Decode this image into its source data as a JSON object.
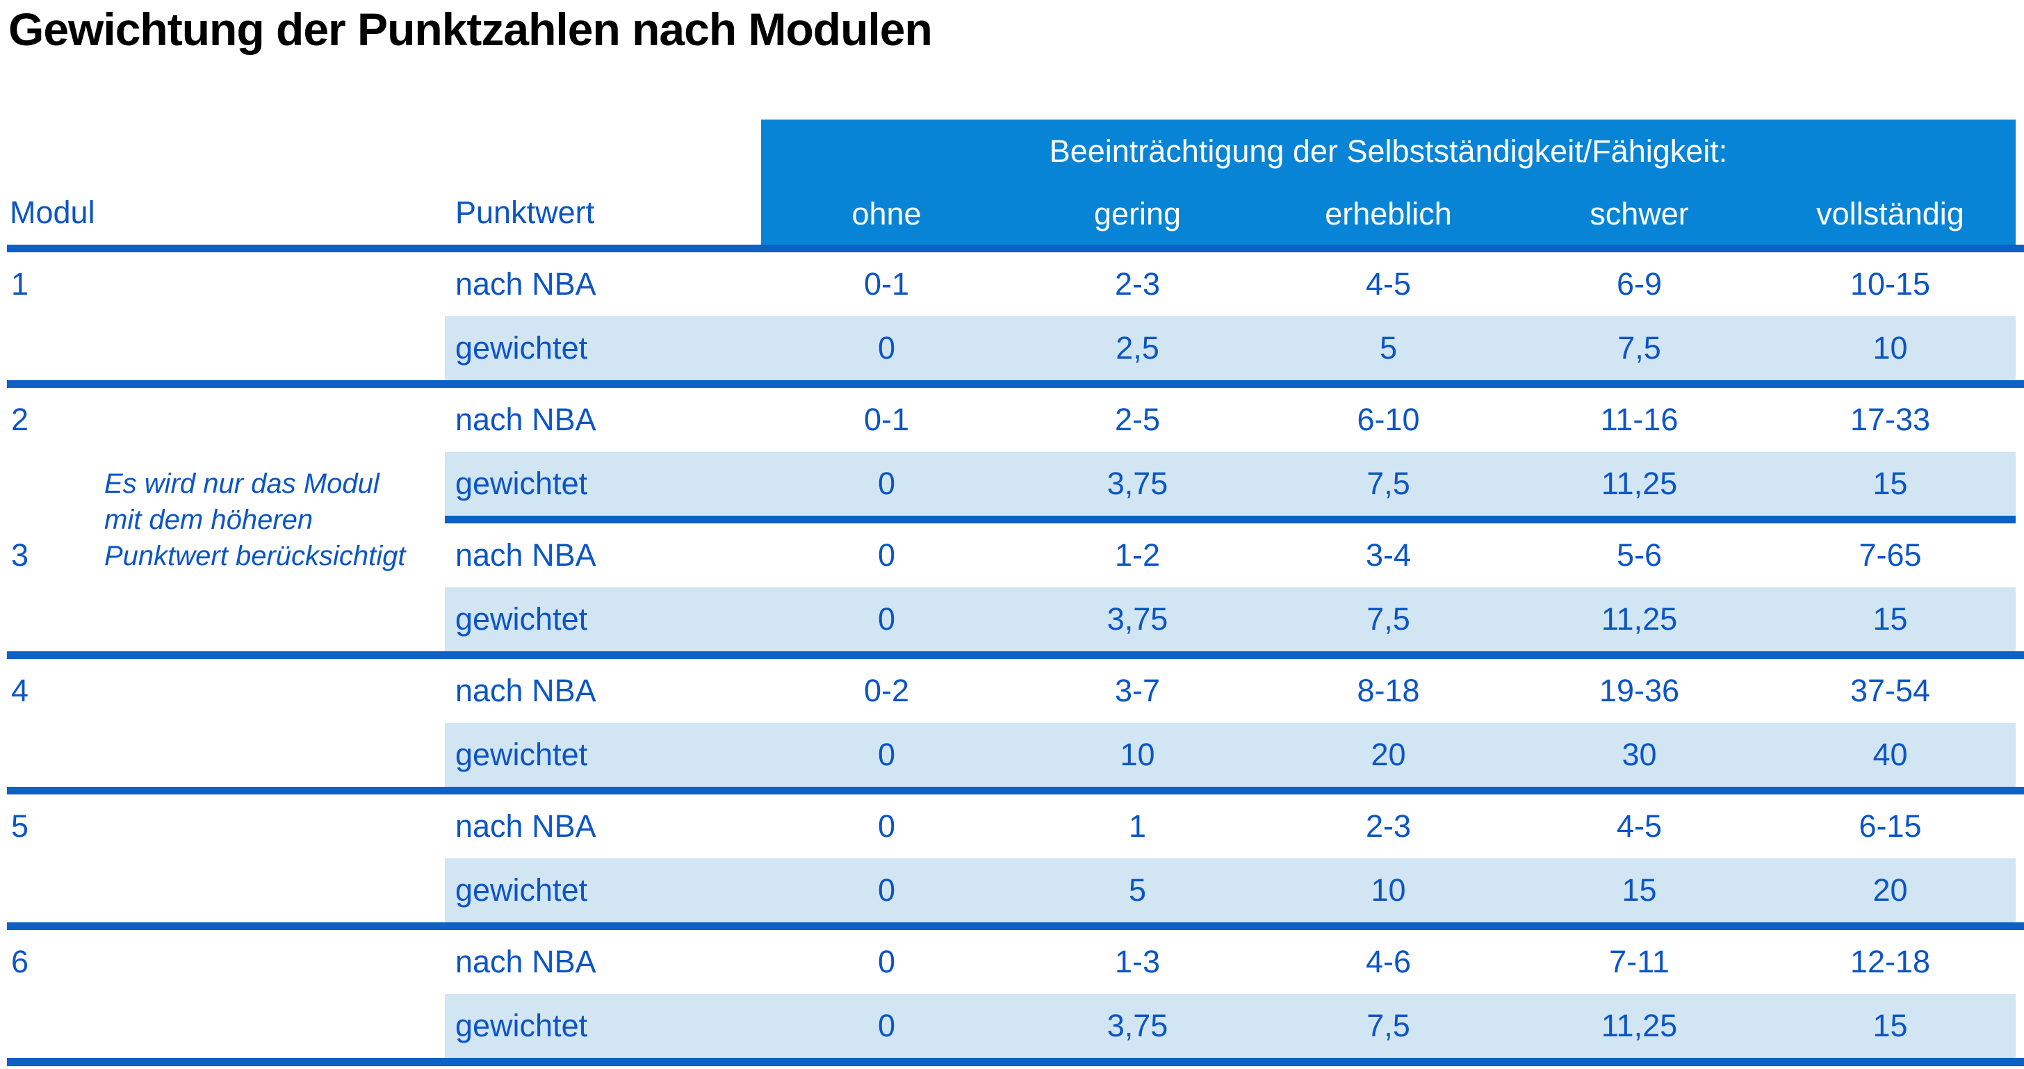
{
  "title": "Gewichtung der Punktzahlen nach Modulen",
  "table": {
    "col_modul": "Modul",
    "col_punktwert": "Punktwert",
    "group_header": "Beeinträchtigung der Selbstständigkeit/Fähigkeit:",
    "severity_levels": [
      "ohne",
      "gering",
      "erheblich",
      "schwer",
      "vollständig"
    ],
    "row_labels": {
      "nba": "nach NBA",
      "weighted": "gewichtet"
    },
    "note_lines": [
      "Es wird nur das Modul",
      "mit dem höheren",
      "Punktwert berücksichtigt"
    ],
    "modules": [
      {
        "id": "1",
        "nba": [
          "0-1",
          "2-3",
          "4-5",
          "6-9",
          "10-15"
        ],
        "weighted": [
          "0",
          "2,5",
          "5",
          "7,5",
          "10"
        ]
      },
      {
        "id": "2",
        "nba": [
          "0-1",
          "2-5",
          "6-10",
          "11-16",
          "17-33"
        ],
        "weighted": [
          "0",
          "3,75",
          "7,5",
          "11,25",
          "15"
        ]
      },
      {
        "id": "3",
        "nba": [
          "0",
          "1-2",
          "3-4",
          "5-6",
          "7-65"
        ],
        "weighted": [
          "0",
          "3,75",
          "7,5",
          "11,25",
          "15"
        ]
      },
      {
        "id": "4",
        "nba": [
          "0-2",
          "3-7",
          "8-18",
          "19-36",
          "37-54"
        ],
        "weighted": [
          "0",
          "10",
          "20",
          "30",
          "40"
        ]
      },
      {
        "id": "5",
        "nba": [
          "0",
          "1",
          "2-3",
          "4-5",
          "6-15"
        ],
        "weighted": [
          "0",
          "5",
          "10",
          "15",
          "20"
        ]
      },
      {
        "id": "6",
        "nba": [
          "0",
          "1-3",
          "4-6",
          "7-11",
          "12-18"
        ],
        "weighted": [
          "0",
          "3,75",
          "7,5",
          "11,25",
          "15"
        ]
      }
    ]
  },
  "colors": {
    "band": "#0884d7",
    "line": "#0d60c4",
    "text": "#0b55c6",
    "rowbg": "#d2e5f3",
    "title": "#000000"
  }
}
